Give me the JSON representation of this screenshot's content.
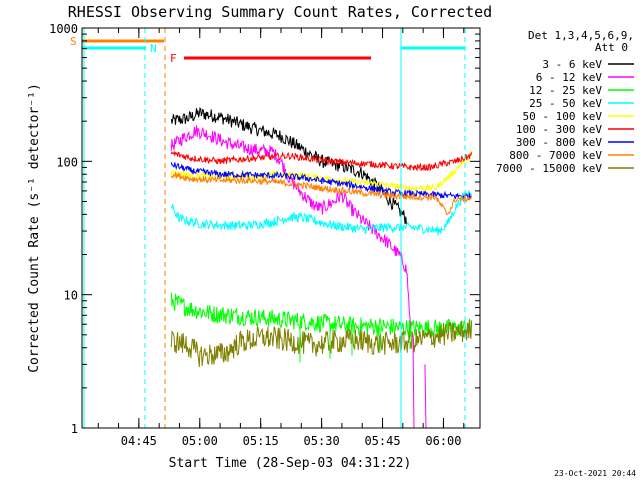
{
  "chart_data": {
    "type": "line",
    "title": "RHESSI Observing Summary Count Rates, Corrected",
    "xlabel": "Start Time (28-Sep-03 04:31:22)",
    "ylabel": "Corrected Count Rate (s⁻¹ detector⁻¹)",
    "y_scale": "log",
    "ylim": [
      1,
      1000
    ],
    "xlim": [
      "04:31",
      "06:09"
    ],
    "y_ticks": [
      {
        "v": 1,
        "label": "1"
      },
      {
        "v": 10,
        "label": "10"
      },
      {
        "v": 100,
        "label": "100"
      },
      {
        "v": 1000,
        "label": "1000"
      }
    ],
    "x_ticks": [
      {
        "t": "04:45",
        "label": "04:45"
      },
      {
        "t": "05:00",
        "label": "05:00"
      },
      {
        "t": "05:15",
        "label": "05:15"
      },
      {
        "t": "05:30",
        "label": "05:30"
      },
      {
        "t": "05:45",
        "label": "05:45"
      },
      {
        "t": "06:00",
        "label": "06:00"
      }
    ],
    "legend": {
      "header1": "Det 1,3,4,5,6,9,",
      "header2": "Att 0",
      "placement": "right"
    },
    "series": [
      {
        "name": "3 - 6 keV",
        "color": "#000000",
        "noise": 0.05,
        "points": [
          [
            "04:53",
            200
          ],
          [
            "04:57",
            210
          ],
          [
            "05:00",
            230
          ],
          [
            "05:05",
            215
          ],
          [
            "05:10",
            190
          ],
          [
            "05:15",
            170
          ],
          [
            "05:20",
            155
          ],
          [
            "05:25",
            125
          ],
          [
            "05:30",
            100
          ],
          [
            "05:35",
            92
          ],
          [
            "05:40",
            82
          ],
          [
            "05:44",
            64
          ],
          [
            "05:47",
            50
          ],
          [
            "05:50",
            40
          ],
          [
            "05:51",
            36
          ]
        ]
      },
      {
        "name": "6 - 12 keV",
        "color": "#ff00ff",
        "noise": 0.05,
        "points": [
          [
            "04:53",
            130
          ],
          [
            "04:56",
            150
          ],
          [
            "04:59",
            170
          ],
          [
            "05:02",
            160
          ],
          [
            "05:06",
            140
          ],
          [
            "05:10",
            128
          ],
          [
            "05:15",
            120
          ],
          [
            "05:18",
            118
          ],
          [
            "05:20",
            100
          ],
          [
            "05:22",
            75
          ],
          [
            "05:25",
            58
          ],
          [
            "05:28",
            47
          ],
          [
            "05:30",
            44
          ],
          [
            "05:33",
            50
          ],
          [
            "05:35",
            56
          ],
          [
            "05:37",
            45
          ],
          [
            "05:40",
            36
          ],
          [
            "05:43",
            30
          ],
          [
            "05:46",
            25
          ],
          [
            "05:49",
            20
          ],
          [
            "05:50",
            18
          ],
          [
            "05:51",
            15
          ],
          [
            "05:52",
            5
          ]
        ]
      },
      {
        "name": "12 - 25 keV",
        "color": "#00ff00",
        "noise": 0.07,
        "points": [
          [
            "04:53",
            9
          ],
          [
            "04:58",
            7.8
          ],
          [
            "05:03",
            7.2
          ],
          [
            "05:08",
            7.0
          ],
          [
            "05:13",
            6.8
          ],
          [
            "05:18",
            6.6
          ],
          [
            "05:23",
            6.4
          ],
          [
            "05:28",
            6.2
          ],
          [
            "05:33",
            6.0
          ],
          [
            "05:38",
            5.8
          ],
          [
            "05:43",
            5.8
          ],
          [
            "05:48",
            5.7
          ],
          [
            "05:53",
            5.6
          ],
          [
            "05:58",
            5.6
          ],
          [
            "06:03",
            5.6
          ],
          [
            "06:07",
            5.7
          ]
        ]
      },
      {
        "name": "25 - 50 keV",
        "color": "#00ffff",
        "noise": 0.035,
        "points": [
          [
            "04:53",
            46
          ],
          [
            "04:55",
            37
          ],
          [
            "05:00",
            34
          ],
          [
            "05:06",
            33
          ],
          [
            "05:12",
            33
          ],
          [
            "05:18",
            35
          ],
          [
            "05:22",
            38
          ],
          [
            "05:25",
            38
          ],
          [
            "05:28",
            36
          ],
          [
            "05:33",
            33
          ],
          [
            "05:40",
            31
          ],
          [
            "05:46",
            32
          ],
          [
            "05:52",
            32
          ],
          [
            "05:56",
            31
          ],
          [
            "05:59",
            30
          ],
          [
            "06:01",
            34
          ],
          [
            "06:03",
            45
          ],
          [
            "06:05",
            55
          ],
          [
            "06:07",
            60
          ]
        ]
      },
      {
        "name": "50 - 100 keV",
        "color": "#ffff00",
        "noise": 0.025,
        "points": [
          [
            "04:53",
            82
          ],
          [
            "05:00",
            78
          ],
          [
            "05:08",
            77
          ],
          [
            "05:15",
            78
          ],
          [
            "05:20",
            80
          ],
          [
            "05:26",
            78
          ],
          [
            "05:32",
            74
          ],
          [
            "05:38",
            70
          ],
          [
            "05:43",
            68
          ],
          [
            "05:48",
            65
          ],
          [
            "05:53",
            63
          ],
          [
            "05:58",
            63
          ],
          [
            "06:02",
            80
          ],
          [
            "06:05",
            100
          ],
          [
            "06:07",
            115
          ]
        ]
      },
      {
        "name": "100 - 300 keV",
        "color": "#ff0000",
        "noise": 0.025,
        "points": [
          [
            "04:53",
            115
          ],
          [
            "04:58",
            106
          ],
          [
            "05:05",
            100
          ],
          [
            "05:12",
            105
          ],
          [
            "05:18",
            108
          ],
          [
            "05:22",
            110
          ],
          [
            "05:26",
            106
          ],
          [
            "05:32",
            100
          ],
          [
            "05:38",
            97
          ],
          [
            "05:43",
            95
          ],
          [
            "05:48",
            92
          ],
          [
            "05:52",
            90
          ],
          [
            "05:57",
            90
          ],
          [
            "06:00",
            96
          ],
          [
            "06:03",
            100
          ],
          [
            "06:06",
            108
          ],
          [
            "06:07",
            112
          ]
        ]
      },
      {
        "name": "300 - 800 keV",
        "color": "#0000ff",
        "noise": 0.025,
        "points": [
          [
            "04:53",
            95
          ],
          [
            "04:58",
            85
          ],
          [
            "05:05",
            80
          ],
          [
            "05:12",
            79
          ],
          [
            "05:20",
            78
          ],
          [
            "05:26",
            75
          ],
          [
            "05:32",
            70
          ],
          [
            "05:38",
            66
          ],
          [
            "05:43",
            62
          ],
          [
            "05:48",
            58
          ],
          [
            "05:53",
            57
          ],
          [
            "05:58",
            56
          ],
          [
            "06:02",
            55
          ],
          [
            "06:07",
            55
          ]
        ]
      },
      {
        "name": "800 - 7000 keV",
        "color": "#ff8000",
        "noise": 0.025,
        "points": [
          [
            "04:53",
            80
          ],
          [
            "04:58",
            74
          ],
          [
            "05:05",
            72
          ],
          [
            "05:12",
            72
          ],
          [
            "05:18",
            70
          ],
          [
            "05:24",
            67
          ],
          [
            "05:30",
            63
          ],
          [
            "05:36",
            60
          ],
          [
            "05:42",
            57
          ],
          [
            "05:48",
            55
          ],
          [
            "05:54",
            54
          ],
          [
            "05:58",
            54
          ],
          [
            "06:01",
            40
          ],
          [
            "06:03",
            52
          ],
          [
            "06:07",
            53
          ]
        ]
      },
      {
        "name": "7000 - 15000 keV",
        "color": "#808000",
        "noise": 0.09,
        "points": [
          [
            "04:53",
            4.5
          ],
          [
            "04:57",
            4.2
          ],
          [
            "05:00",
            3.5
          ],
          [
            "05:06",
            3.6
          ],
          [
            "05:10",
            4.4
          ],
          [
            "05:16",
            4.8
          ],
          [
            "05:22",
            4.5
          ],
          [
            "05:28",
            4.2
          ],
          [
            "05:33",
            4.4
          ],
          [
            "05:38",
            4.6
          ],
          [
            "05:43",
            4.3
          ],
          [
            "05:48",
            4.3
          ],
          [
            "05:53",
            4.5
          ],
          [
            "05:58",
            4.9
          ],
          [
            "06:03",
            5.2
          ],
          [
            "06:07",
            5.4
          ]
        ]
      }
    ],
    "markers": [
      {
        "label": "S",
        "color": "#ff8000"
      },
      {
        "label": "N",
        "color": "#00ffff"
      },
      {
        "label": "F",
        "color": "#ff0000"
      }
    ],
    "footer": "23-Oct-2021 20:44"
  }
}
